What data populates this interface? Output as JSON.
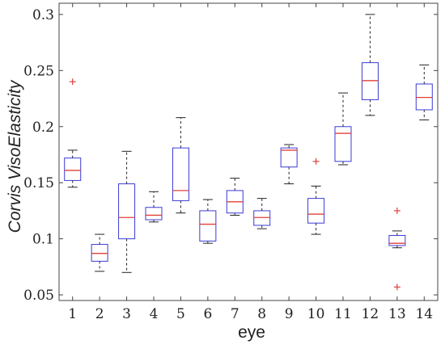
{
  "chart_data": {
    "type": "box",
    "xlabel": "eye",
    "ylabel": "Corvis VisoElasticity",
    "ylim": [
      0.045,
      0.31
    ],
    "yticks": [
      0.05,
      0.1,
      0.15,
      0.2,
      0.25,
      0.3
    ],
    "ytick_labels": [
      "0.05",
      "0.1",
      "0.15",
      "0.2",
      "0.25",
      "0.3"
    ],
    "categories": [
      "1",
      "2",
      "3",
      "4",
      "5",
      "6",
      "7",
      "8",
      "9",
      "10",
      "11",
      "12",
      "13",
      "14"
    ],
    "boxes": [
      {
        "whisker_low": 0.146,
        "q1": 0.152,
        "median": 0.161,
        "q3": 0.172,
        "whisker_high": 0.179,
        "outliers": [
          0.24
        ]
      },
      {
        "whisker_low": 0.071,
        "q1": 0.08,
        "median": 0.087,
        "q3": 0.095,
        "whisker_high": 0.104,
        "outliers": []
      },
      {
        "whisker_low": 0.07,
        "q1": 0.1,
        "median": 0.119,
        "q3": 0.149,
        "whisker_high": 0.178,
        "outliers": []
      },
      {
        "whisker_low": 0.115,
        "q1": 0.117,
        "median": 0.121,
        "q3": 0.128,
        "whisker_high": 0.142,
        "outliers": []
      },
      {
        "whisker_low": 0.123,
        "q1": 0.134,
        "median": 0.143,
        "q3": 0.181,
        "whisker_high": 0.208,
        "outliers": []
      },
      {
        "whisker_low": 0.096,
        "q1": 0.098,
        "median": 0.113,
        "q3": 0.125,
        "whisker_high": 0.135,
        "outliers": []
      },
      {
        "whisker_low": 0.121,
        "q1": 0.123,
        "median": 0.133,
        "q3": 0.143,
        "whisker_high": 0.154,
        "outliers": []
      },
      {
        "whisker_low": 0.109,
        "q1": 0.112,
        "median": 0.119,
        "q3": 0.125,
        "whisker_high": 0.136,
        "outliers": []
      },
      {
        "whisker_low": 0.149,
        "q1": 0.164,
        "median": 0.179,
        "q3": 0.181,
        "whisker_high": 0.184,
        "outliers": []
      },
      {
        "whisker_low": 0.104,
        "q1": 0.114,
        "median": 0.122,
        "q3": 0.136,
        "whisker_high": 0.147,
        "outliers": [
          0.169
        ]
      },
      {
        "whisker_low": 0.166,
        "q1": 0.169,
        "median": 0.194,
        "q3": 0.2,
        "whisker_high": 0.23,
        "outliers": []
      },
      {
        "whisker_low": 0.21,
        "q1": 0.224,
        "median": 0.241,
        "q3": 0.257,
        "whisker_high": 0.3,
        "outliers": []
      },
      {
        "whisker_low": 0.092,
        "q1": 0.094,
        "median": 0.096,
        "q3": 0.103,
        "whisker_high": 0.107,
        "outliers": [
          0.125,
          0.057
        ]
      },
      {
        "whisker_low": 0.206,
        "q1": 0.215,
        "median": 0.226,
        "q3": 0.238,
        "whisker_high": 0.255,
        "outliers": []
      }
    ],
    "grid": false,
    "legend": "none",
    "colors": {
      "box": "#3b3bd6",
      "median": "#e0403a",
      "outlier": "#e0403a",
      "whisker": "#222222",
      "axes": "#444444"
    }
  }
}
